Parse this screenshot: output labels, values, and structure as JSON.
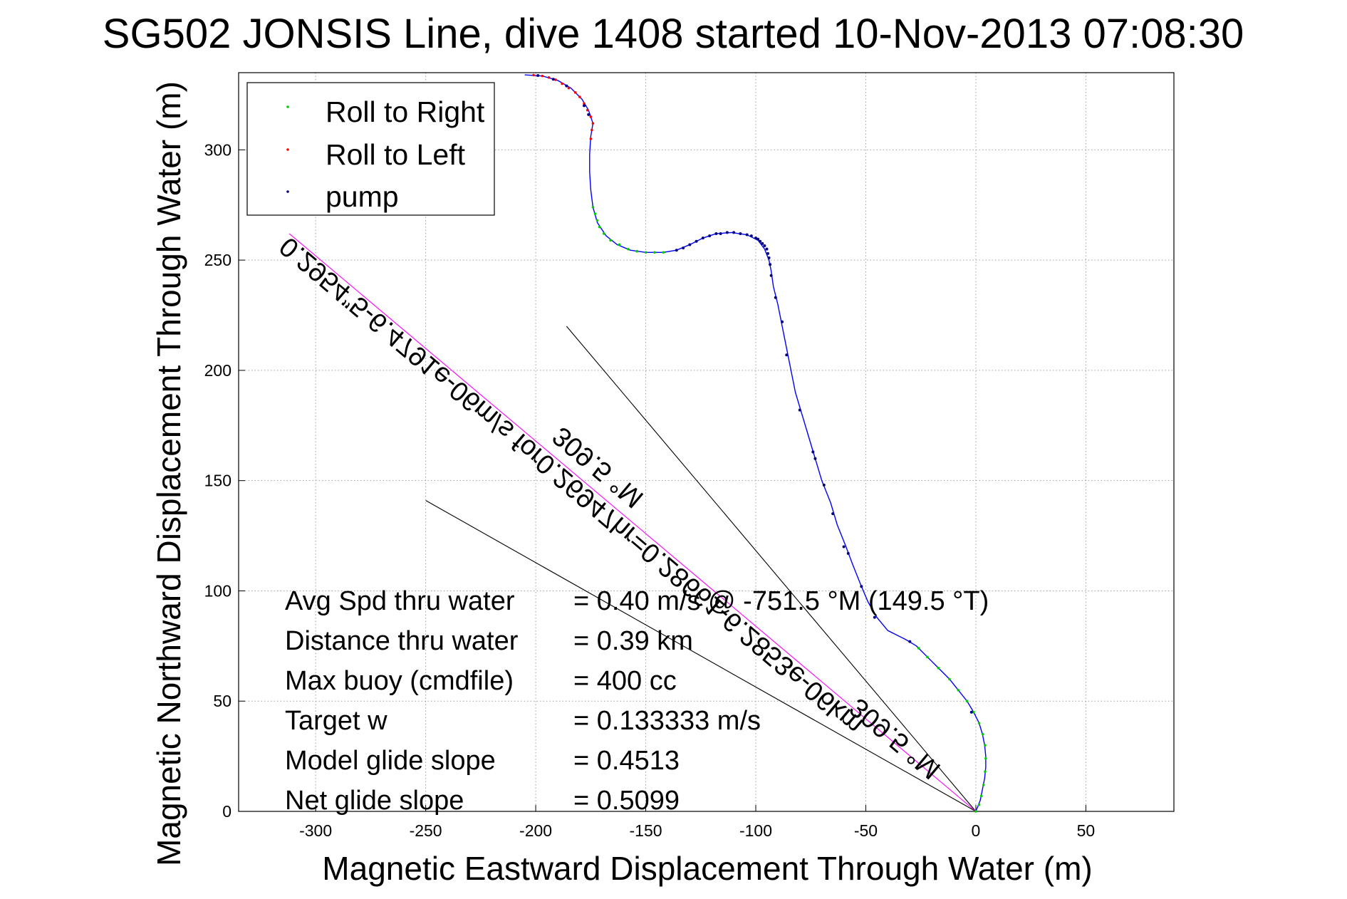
{
  "chart_data": {
    "type": "line",
    "title": "SG502 JONSIS Line, dive 1408 started 10-Nov-2013 07:08:30",
    "xlabel": "Magnetic Eastward Displacement Through Water (m)",
    "ylabel": "Magnetic Northward Displacement Through Water (m)",
    "xlim": [
      -335,
      90
    ],
    "ylim": [
      0,
      335
    ],
    "xticks": [
      -300,
      -250,
      -200,
      -150,
      -100,
      -50,
      0,
      50
    ],
    "yticks": [
      0,
      50,
      100,
      150,
      200,
      250,
      300
    ],
    "grid": true,
    "legend_position": "top-left",
    "legend": [
      {
        "label": "Roll to Right",
        "color": "#00cc00"
      },
      {
        "label": "Roll to Left",
        "color": "#ff0000"
      },
      {
        "label": "pump",
        "color": "#000080"
      }
    ],
    "track": {
      "color": "#0000ff",
      "points": [
        [
          0,
          0
        ],
        [
          2,
          5
        ],
        [
          3,
          10
        ],
        [
          4,
          15
        ],
        [
          4.5,
          20
        ],
        [
          4.5,
          25
        ],
        [
          4,
          30
        ],
        [
          3,
          35
        ],
        [
          1.5,
          40
        ],
        [
          -1,
          45
        ],
        [
          -4,
          50
        ],
        [
          -8,
          55
        ],
        [
          -12,
          60
        ],
        [
          -17,
          65
        ],
        [
          -22,
          70
        ],
        [
          -27,
          75
        ],
        [
          -32,
          78
        ],
        [
          -40,
          82
        ],
        [
          -45,
          88
        ],
        [
          -49,
          95
        ],
        [
          -52,
          102
        ],
        [
          -56,
          112
        ],
        [
          -59,
          120
        ],
        [
          -63,
          130
        ],
        [
          -66,
          140
        ],
        [
          -70,
          150
        ],
        [
          -73,
          160
        ],
        [
          -76,
          170
        ],
        [
          -79,
          180
        ],
        [
          -82,
          190
        ],
        [
          -84,
          200
        ],
        [
          -86,
          210
        ],
        [
          -88,
          220
        ],
        [
          -90,
          230
        ],
        [
          -92,
          238
        ],
        [
          -93,
          245
        ],
        [
          -94,
          250
        ],
        [
          -96,
          255
        ],
        [
          -99,
          259
        ],
        [
          -104,
          261.5
        ],
        [
          -111,
          262.5
        ],
        [
          -118,
          262
        ],
        [
          -124,
          260
        ],
        [
          -130,
          257
        ],
        [
          -136,
          254.5
        ],
        [
          -142,
          253.5
        ],
        [
          -150,
          253.5
        ],
        [
          -157,
          254.5
        ],
        [
          -163,
          257
        ],
        [
          -168,
          261
        ],
        [
          -172,
          267
        ],
        [
          -174,
          274
        ],
        [
          -175,
          282
        ],
        [
          -175.5,
          290
        ],
        [
          -175.5,
          298
        ],
        [
          -175,
          306
        ],
        [
          -174,
          312
        ],
        [
          -176,
          318
        ],
        [
          -179,
          323
        ],
        [
          -184,
          328
        ],
        [
          -190,
          331.5
        ],
        [
          -197,
          333.5
        ],
        [
          -205,
          334
        ]
      ]
    },
    "roll_right_points": [
      [
        0,
        0
      ],
      [
        1.5,
        3
      ],
      [
        2.5,
        7
      ],
      [
        3.5,
        12
      ],
      [
        4.2,
        18
      ],
      [
        4.5,
        24
      ],
      [
        4.2,
        30
      ],
      [
        3.2,
        35
      ],
      [
        1.5,
        40
      ],
      [
        -1,
        45
      ],
      [
        -4,
        50
      ],
      [
        -8,
        55
      ],
      [
        -12,
        60
      ],
      [
        -17,
        65
      ],
      [
        -22,
        70
      ],
      [
        -26,
        74
      ],
      [
        -171,
        265
      ],
      [
        -172,
        268
      ],
      [
        -173,
        271
      ],
      [
        -174,
        274
      ],
      [
        -169,
        262
      ],
      [
        -166,
        259
      ],
      [
        -162,
        257
      ],
      [
        -158,
        255
      ],
      [
        -154,
        254
      ],
      [
        -150,
        253.5
      ],
      [
        -146,
        253.5
      ],
      [
        -142,
        253.5
      ]
    ],
    "roll_left_points": [
      [
        -175,
        305
      ],
      [
        -174.5,
        309
      ],
      [
        -174,
        312
      ],
      [
        -175,
        315
      ],
      [
        -176.5,
        318
      ],
      [
        -178,
        321
      ],
      [
        -180,
        324
      ],
      [
        -182,
        326
      ],
      [
        -185,
        328
      ],
      [
        -188,
        330
      ],
      [
        -191,
        331.8
      ],
      [
        -194,
        332.8
      ],
      [
        -197,
        333.5
      ],
      [
        -201,
        333.9
      ]
    ],
    "pump_points": [
      [
        -2,
        45
      ],
      [
        -30,
        77
      ],
      [
        -46,
        88
      ],
      [
        -52,
        102
      ],
      [
        -58,
        117
      ],
      [
        -60,
        120
      ],
      [
        -65,
        135
      ],
      [
        -69,
        148
      ],
      [
        -73,
        160
      ],
      [
        -74,
        163
      ],
      [
        -80,
        182
      ],
      [
        -86,
        207
      ],
      [
        -88,
        222
      ],
      [
        -91,
        233
      ],
      [
        -93,
        243
      ],
      [
        -93.5,
        248
      ],
      [
        -94,
        251
      ],
      [
        -94.5,
        253
      ],
      [
        -95,
        255
      ],
      [
        -96,
        256.5
      ],
      [
        -97,
        257.5
      ],
      [
        -98,
        258.5
      ],
      [
        -99,
        259.5
      ],
      [
        -100,
        260
      ],
      [
        -102,
        261
      ],
      [
        -104,
        261.5
      ],
      [
        -107,
        262
      ],
      [
        -110,
        262.5
      ],
      [
        -113,
        262.5
      ],
      [
        -116,
        262
      ],
      [
        -118,
        262
      ],
      [
        -121,
        261
      ],
      [
        -124,
        260
      ],
      [
        -127,
        258.5
      ],
      [
        -130,
        257
      ],
      [
        -133,
        255.5
      ],
      [
        -136,
        254.5
      ],
      [
        -176,
        316
      ],
      [
        -178,
        320
      ],
      [
        -186,
        329
      ],
      [
        -192,
        332
      ],
      [
        -199,
        333.7
      ]
    ],
    "straight_lines": [
      {
        "name": "glide-1",
        "color": "#000000",
        "from": [
          0,
          0
        ],
        "to": [
          -186,
          220
        ]
      },
      {
        "name": "glide-2",
        "color": "#000000",
        "from": [
          0,
          0
        ],
        "to": [
          -250,
          141
        ]
      },
      {
        "name": "current",
        "color": "#ff00ff",
        "from": [
          0,
          0
        ],
        "to": [
          -312,
          262
        ]
      }
    ],
    "annotations": [
      {
        "text": "0.2954”5-6.4791e-06m/s for0.26947hr=0.28661-6.2853e-06km",
        "x": -312,
        "y": 261,
        "angle": 40.2
      },
      {
        "text": "309.5 °M",
        "x": -188,
        "y": 175,
        "angle": 40.2
      },
      {
        "text": "309.5 °M",
        "x": -53,
        "y": 52,
        "angle": 40.2
      }
    ],
    "stats": [
      {
        "label": "Avg Spd thru water",
        "value": "=  0.40 m/s @ -751.5 °M (149.5 °T)"
      },
      {
        "label": "Distance thru water",
        "value": "=  0.39 km"
      },
      {
        "label": "Max buoy (cmdfile)",
        "value": "= 400 cc"
      },
      {
        "label": "Target w",
        "value": "= 0.133333 m/s"
      },
      {
        "label": "Model glide slope",
        "value": "= 0.4513"
      },
      {
        "label": "Net glide slope",
        "value": "= 0.5099"
      }
    ]
  }
}
